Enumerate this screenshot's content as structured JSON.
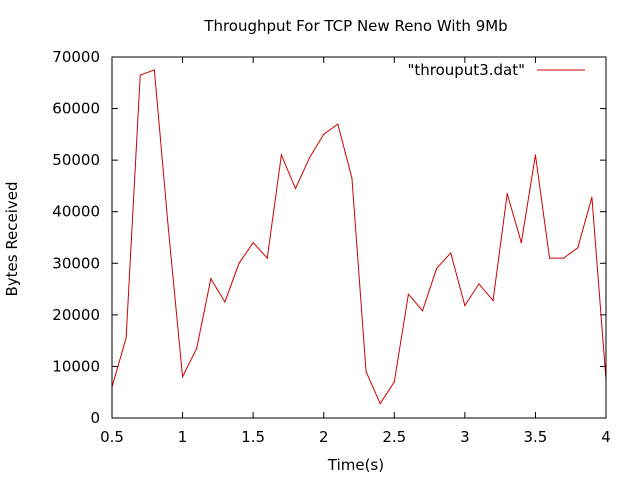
{
  "chart_data": {
    "type": "line",
    "title": "Throughput For TCP New Reno With 9Mb",
    "xlabel": "Time(s)",
    "ylabel": "Bytes Received",
    "xlim": [
      0.5,
      4
    ],
    "ylim": [
      0,
      70000
    ],
    "x_ticks": [
      0.5,
      1,
      1.5,
      2,
      2.5,
      3,
      3.5,
      4
    ],
    "x_tick_labels": [
      "0.5",
      "1",
      "1.5",
      "2",
      "2.5",
      "3",
      "3.5",
      "4"
    ],
    "y_ticks": [
      0,
      10000,
      20000,
      30000,
      40000,
      50000,
      60000,
      70000
    ],
    "y_tick_labels": [
      "0",
      "10000",
      "20000",
      "30000",
      "40000",
      "50000",
      "60000",
      "70000"
    ],
    "grid": false,
    "legend_position": "top-right",
    "series": [
      {
        "name": "\"throuput3.dat\"",
        "color": "#cc0000",
        "x": [
          0.5,
          0.6,
          0.7,
          0.8,
          0.9,
          1.0,
          1.1,
          1.2,
          1.3,
          1.4,
          1.5,
          1.6,
          1.7,
          1.8,
          1.9,
          2.0,
          2.1,
          2.2,
          2.3,
          2.4,
          2.5,
          2.6,
          2.7,
          2.8,
          2.9,
          3.0,
          3.1,
          3.2,
          3.3,
          3.4,
          3.5,
          3.6,
          3.7,
          3.8,
          3.9,
          4.0
        ],
        "y": [
          6000,
          15500,
          66500,
          67500,
          36500,
          8000,
          13500,
          27000,
          22500,
          30000,
          34000,
          31000,
          51000,
          44500,
          50500,
          55000,
          57000,
          46500,
          9000,
          2800,
          7000,
          24000,
          20800,
          29000,
          32000,
          21800,
          26000,
          22800,
          43500,
          34000,
          51000,
          31000,
          31000,
          33000,
          42800,
          7500
        ]
      }
    ]
  }
}
